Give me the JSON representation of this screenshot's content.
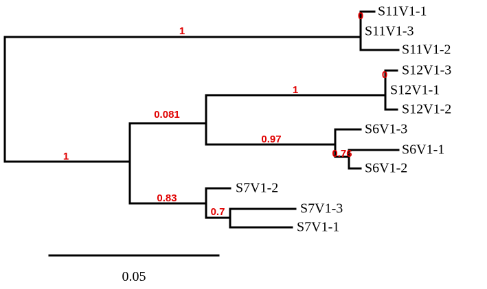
{
  "tree": {
    "leaves": [
      "S11V1-1",
      "S11V1-3",
      "S11V1-2",
      "S12V1-3",
      "S12V1-1",
      "S12V1-2",
      "S6V1-3",
      "S6V1-1",
      "S6V1-2",
      "S7V1-2",
      "S7V1-3",
      "S7V1-1"
    ],
    "supports": [
      "1",
      "0",
      "1",
      "0.081",
      "1",
      "0",
      "0.97",
      "0.76",
      "0.83",
      "0.7"
    ],
    "scale_label": "0.05"
  }
}
